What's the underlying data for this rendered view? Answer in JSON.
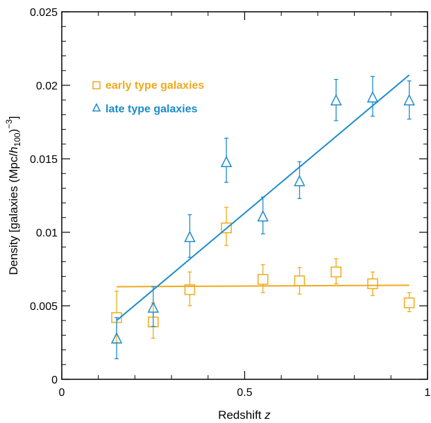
{
  "chart_data": {
    "type": "scatter",
    "xlabel": "Redshift z",
    "ylabel": "Density [galaxies (Mpc/h100)−3]",
    "xlabel_parts": {
      "text": "Redshift ",
      "var": "z"
    },
    "ylabel_parts": {
      "pre": "Density [galaxies (Mpc/",
      "h": "h",
      "sub": "100",
      "post": ")",
      "sup": "−3",
      "end": "]"
    },
    "xlim": [
      0,
      1
    ],
    "ylim": [
      0,
      0.025
    ],
    "x_ticks": [
      0,
      0.5,
      1
    ],
    "x_tick_labels": [
      "0",
      "0.5",
      "1"
    ],
    "x_minor_ticks": [
      0.1,
      0.2,
      0.3,
      0.4,
      0.6,
      0.7,
      0.8,
      0.9
    ],
    "y_ticks": [
      0,
      0.005,
      0.01,
      0.015,
      0.02,
      0.025
    ],
    "y_tick_labels": [
      "0",
      "0.005",
      "0.01",
      "0.015",
      "0.02",
      "0.025"
    ],
    "y_minor_ticks": [
      0.001,
      0.002,
      0.003,
      0.004,
      0.006,
      0.007,
      0.008,
      0.009,
      0.011,
      0.012,
      0.013,
      0.014,
      0.016,
      0.017,
      0.018,
      0.019,
      0.021,
      0.022,
      0.023,
      0.024
    ],
    "legend_position": "top-left",
    "grid": false,
    "series": [
      {
        "name": "early type galaxies",
        "marker": "square",
        "color": "#F0A91B",
        "points": [
          {
            "x": 0.15,
            "y": 0.0042,
            "lo": 0.0025,
            "hi": 0.006
          },
          {
            "x": 0.25,
            "y": 0.0039,
            "lo": 0.0028,
            "hi": 0.0052
          },
          {
            "x": 0.35,
            "y": 0.0061,
            "lo": 0.005,
            "hi": 0.0073
          },
          {
            "x": 0.45,
            "y": 0.0103,
            "lo": 0.0091,
            "hi": 0.0117
          },
          {
            "x": 0.55,
            "y": 0.0068,
            "lo": 0.0059,
            "hi": 0.0078
          },
          {
            "x": 0.65,
            "y": 0.0067,
            "lo": 0.0058,
            "hi": 0.0076
          },
          {
            "x": 0.75,
            "y": 0.0073,
            "lo": 0.0065,
            "hi": 0.0082
          },
          {
            "x": 0.85,
            "y": 0.0065,
            "lo": 0.0057,
            "hi": 0.0073
          },
          {
            "x": 0.95,
            "y": 0.0052,
            "lo": 0.0046,
            "hi": 0.0059
          }
        ],
        "fit": {
          "x": [
            0.15,
            0.95
          ],
          "y": [
            0.0063,
            0.0064
          ]
        }
      },
      {
        "name": "late type galaxies",
        "marker": "triangle",
        "color": "#1B8CCB",
        "points": [
          {
            "x": 0.15,
            "y": 0.0028,
            "lo": 0.0014,
            "hi": 0.0042
          },
          {
            "x": 0.25,
            "y": 0.0049,
            "lo": 0.0036,
            "hi": 0.0063
          },
          {
            "x": 0.35,
            "y": 0.0097,
            "lo": 0.0083,
            "hi": 0.0112
          },
          {
            "x": 0.45,
            "y": 0.0148,
            "lo": 0.0134,
            "hi": 0.0164
          },
          {
            "x": 0.55,
            "y": 0.0111,
            "lo": 0.0099,
            "hi": 0.0124
          },
          {
            "x": 0.65,
            "y": 0.0135,
            "lo": 0.0123,
            "hi": 0.0148
          },
          {
            "x": 0.75,
            "y": 0.019,
            "lo": 0.0176,
            "hi": 0.0204
          },
          {
            "x": 0.85,
            "y": 0.0192,
            "lo": 0.0179,
            "hi": 0.0206
          },
          {
            "x": 0.95,
            "y": 0.019,
            "lo": 0.0177,
            "hi": 0.0203
          }
        ],
        "fit": {
          "x": [
            0.15,
            0.95
          ],
          "y": [
            0.004,
            0.0207
          ]
        }
      }
    ]
  }
}
